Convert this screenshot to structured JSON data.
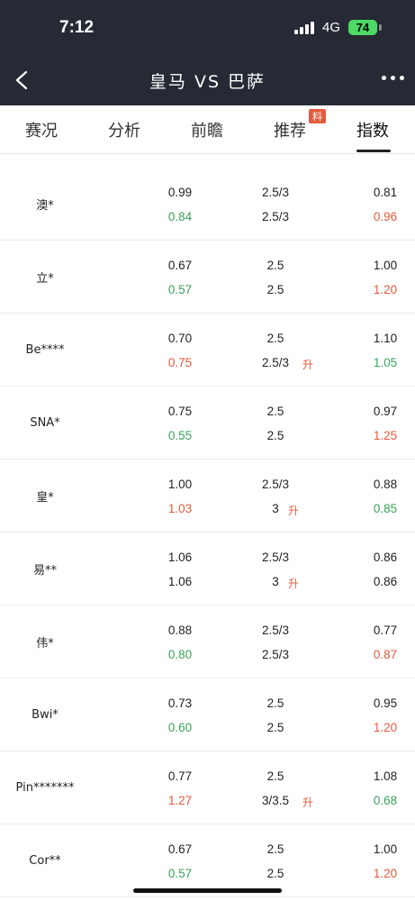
{
  "status_bar": {
    "time": "7:12",
    "network": "4G",
    "battery": "74"
  },
  "nav": {
    "title": "皇马  VS  巴萨"
  },
  "tabs": [
    {
      "label": "赛况"
    },
    {
      "label": "分析"
    },
    {
      "label": "前瞻"
    },
    {
      "label": "推荐",
      "badge": "料"
    },
    {
      "label": "指数",
      "active": true
    }
  ],
  "colors": {
    "up": "#e35a3c",
    "down": "#3aa35a",
    "header": "#262a34"
  },
  "rows": [
    {
      "name": "澳*",
      "a1": "0.99",
      "a2": "0.84",
      "a2c": "down",
      "b1": "2.5/3",
      "b2": "2.5/3",
      "b2r": "",
      "c1": "0.81",
      "c2": "0.96",
      "c2c": "up"
    },
    {
      "name": "立*",
      "a1": "0.67",
      "a2": "0.57",
      "a2c": "down",
      "b1": "2.5",
      "b2": "2.5",
      "b2r": "",
      "c1": "1.00",
      "c2": "1.20",
      "c2c": "up"
    },
    {
      "name": "Be****",
      "a1": "0.70",
      "a2": "0.75",
      "a2c": "up",
      "b1": "2.5",
      "b2": "2.5/3",
      "b2r": "升",
      "c1": "1.10",
      "c2": "1.05",
      "c2c": "down"
    },
    {
      "name": "SNA*",
      "a1": "0.75",
      "a2": "0.55",
      "a2c": "down",
      "b1": "2.5",
      "b2": "2.5",
      "b2r": "",
      "c1": "0.97",
      "c2": "1.25",
      "c2c": "up"
    },
    {
      "name": "皇*",
      "a1": "1.00",
      "a2": "1.03",
      "a2c": "up",
      "b1": "2.5/3",
      "b2": "3",
      "b2r": "升",
      "c1": "0.88",
      "c2": "0.85",
      "c2c": "down"
    },
    {
      "name": "易**",
      "a1": "1.06",
      "a2": "1.06",
      "a2c": "",
      "b1": "2.5/3",
      "b2": "3",
      "b2r": "升",
      "c1": "0.86",
      "c2": "0.86",
      "c2c": ""
    },
    {
      "name": "伟*",
      "a1": "0.88",
      "a2": "0.80",
      "a2c": "down",
      "b1": "2.5/3",
      "b2": "2.5/3",
      "b2r": "",
      "c1": "0.77",
      "c2": "0.87",
      "c2c": "up"
    },
    {
      "name": "Bwi*",
      "a1": "0.73",
      "a2": "0.60",
      "a2c": "down",
      "b1": "2.5",
      "b2": "2.5",
      "b2r": "",
      "c1": "0.95",
      "c2": "1.20",
      "c2c": "up"
    },
    {
      "name": "Pin*******",
      "a1": "0.77",
      "a2": "1.27",
      "a2c": "up",
      "b1": "2.5",
      "b2": "3/3.5",
      "b2r": "升",
      "c1": "1.08",
      "c2": "0.68",
      "c2c": "down"
    },
    {
      "name": "Cor**",
      "a1": "0.67",
      "a2": "0.57",
      "a2c": "down",
      "b1": "2.5",
      "b2": "2.5",
      "b2r": "",
      "c1": "1.00",
      "c2": "1.20",
      "c2c": "up"
    }
  ]
}
